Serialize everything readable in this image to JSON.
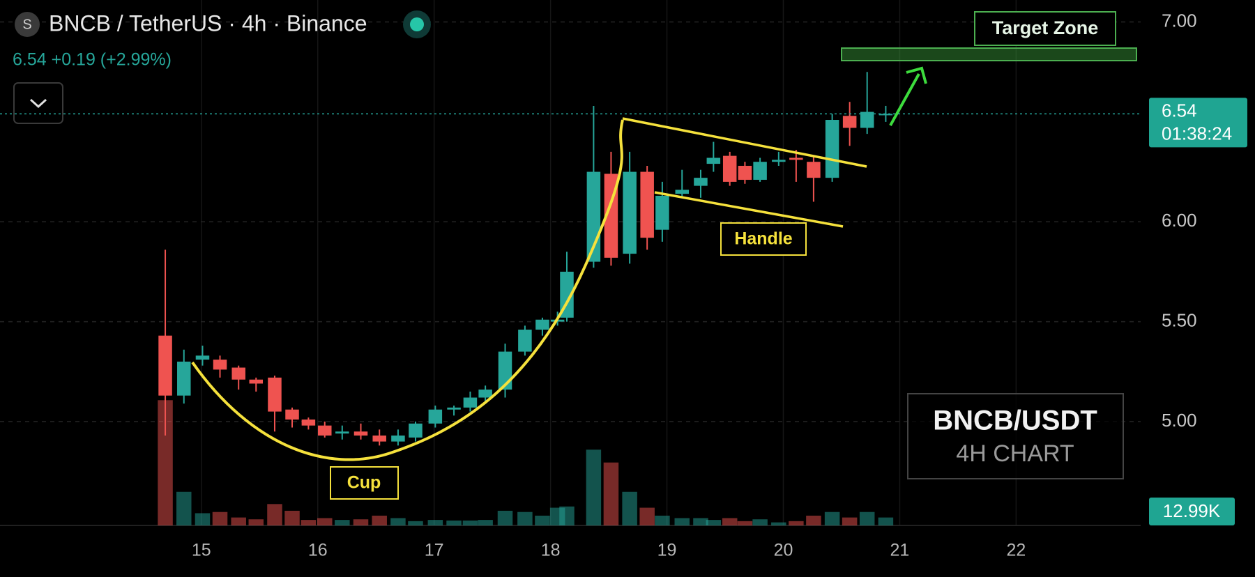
{
  "chart_data": {
    "type": "candlestick",
    "symbol_icon": "S",
    "title": "BNCB / TetherUS · 4h · Binance",
    "quote": "6.54 +0.19 (+2.99%)",
    "current_price": {
      "value": 6.54,
      "label": "6.54"
    },
    "countdown": "01:38:24",
    "current_volume_label": "12.99K",
    "annotations": {
      "cup": "Cup",
      "handle": "Handle",
      "target": "Target Zone"
    },
    "watermark": {
      "pair": "BNCB/USDT",
      "timeframe": "4H CHART"
    },
    "up_color": "#26a69a",
    "down_color": "#ef5350",
    "grid": true,
    "xlim": [
      13.27,
      23.07
    ],
    "xticks": [
      15,
      16,
      17,
      18,
      19,
      20,
      21,
      22
    ],
    "ylim": [
      4.48,
      7.11
    ],
    "yticks": [
      {
        "value": 5,
        "label": "5.00"
      },
      {
        "value": 5.5,
        "label": "5.50"
      },
      {
        "value": 6,
        "label": "6.00"
      },
      {
        "value": 7,
        "label": "7.00"
      }
    ],
    "vlim": [
      0,
      860
    ],
    "x": [
      14.69,
      14.85,
      15.01,
      15.16,
      15.32,
      15.47,
      15.63,
      15.78,
      15.92,
      16.06,
      16.21,
      16.37,
      16.53,
      16.69,
      16.84,
      17.01,
      17.17,
      17.31,
      17.44,
      17.61,
      17.78,
      17.93,
      18.06,
      18.14,
      18.37,
      18.52,
      18.68,
      18.83,
      18.96,
      19.13,
      19.29,
      19.4,
      19.54,
      19.67,
      19.8,
      19.96,
      20.11,
      20.26,
      20.42,
      20.57,
      20.72,
      20.88
    ],
    "open": [
      5.43,
      5.13,
      5.31,
      5.31,
      5.27,
      5.21,
      5.22,
      5.06,
      5.01,
      4.98,
      4.94,
      4.95,
      4.93,
      4.9,
      4.92,
      4.99,
      5.06,
      5.07,
      5.12,
      5.16,
      5.35,
      5.46,
      5.5,
      5.52,
      5.8,
      6.24,
      5.84,
      6.25,
      5.96,
      6.14,
      6.18,
      6.29,
      6.33,
      6.28,
      6.21,
      6.3,
      6.32,
      6.3,
      6.22,
      6.53,
      6.47,
      6.54
    ],
    "high": [
      5.86,
      5.36,
      5.38,
      5.33,
      5.28,
      5.22,
      5.23,
      5.07,
      5.02,
      5.0,
      4.98,
      4.99,
      4.96,
      4.96,
      5.0,
      5.08,
      5.08,
      5.15,
      5.18,
      5.39,
      5.48,
      5.52,
      5.55,
      5.85,
      6.58,
      6.35,
      6.35,
      6.28,
      6.2,
      6.26,
      6.26,
      6.4,
      6.35,
      6.3,
      6.32,
      6.35,
      6.36,
      6.33,
      6.54,
      6.6,
      6.75,
      6.58
    ],
    "low": [
      4.93,
      5.09,
      5.28,
      5.22,
      5.16,
      5.15,
      4.95,
      4.97,
      4.96,
      4.92,
      4.91,
      4.91,
      4.88,
      4.88,
      4.9,
      4.97,
      5.03,
      5.05,
      5.1,
      5.12,
      5.33,
      5.43,
      5.48,
      5.5,
      5.77,
      5.78,
      5.79,
      5.86,
      5.9,
      6.12,
      6.12,
      6.25,
      6.18,
      6.19,
      6.2,
      6.28,
      6.2,
      6.1,
      6.2,
      6.38,
      6.44,
      6.5
    ],
    "close": [
      5.13,
      5.3,
      5.33,
      5.26,
      5.21,
      5.19,
      5.05,
      5.01,
      4.98,
      4.93,
      4.95,
      4.93,
      4.9,
      4.93,
      4.99,
      5.06,
      5.07,
      5.12,
      5.16,
      5.35,
      5.46,
      5.51,
      5.51,
      5.75,
      6.25,
      5.82,
      6.25,
      5.92,
      6.13,
      6.16,
      6.22,
      6.32,
      6.2,
      6.21,
      6.3,
      6.31,
      6.31,
      6.22,
      6.51,
      6.47,
      6.55,
      6.54
    ],
    "volume": [
      205,
      55,
      20,
      22,
      13,
      10,
      35,
      24,
      9,
      12,
      9,
      10,
      16,
      12,
      7,
      9,
      8,
      8,
      9,
      24,
      22,
      16,
      29,
      31,
      124,
      103,
      55,
      29,
      16,
      12,
      12,
      9,
      12,
      7,
      10,
      5,
      7,
      16,
      22,
      13,
      22,
      12.99
    ]
  }
}
